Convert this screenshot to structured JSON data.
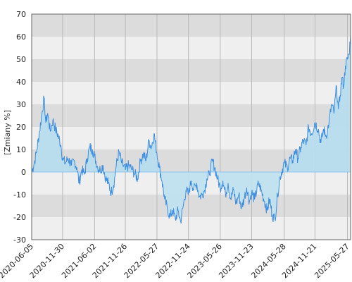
{
  "chart_data": {
    "type": "area",
    "title": "",
    "xlabel": "",
    "ylabel": "[Zmiany %]",
    "ylim": [
      -30,
      70
    ],
    "yticks": [
      -30,
      -20,
      -10,
      0,
      10,
      20,
      30,
      40,
      50,
      60,
      70
    ],
    "xlim": [
      "2020-06-05",
      "2025-06-14"
    ],
    "xtick_labels": [
      "2020-06-05",
      "2020-11-30",
      "2021-06-02",
      "2021-11-26",
      "2022-05-27",
      "2022-11-24",
      "2023-05-26",
      "2023-11-23",
      "2024-05-28",
      "2024-11-21",
      "2025-05-27"
    ],
    "grid": "alternating horizontal bands with vertical gridlines",
    "legend": "none",
    "colors": {
      "line": "#3d8ee0",
      "positive_fill": "#b7dced",
      "negative_fill": "#bfe0ef",
      "band_dark": "#dcdcdc",
      "band_light": "#efefef",
      "vgrid": "#b8b8b8"
    },
    "series": [
      {
        "points": [
          [
            "2020-06-05",
            0
          ],
          [
            "2020-06-20",
            4
          ],
          [
            "2020-07-05",
            10
          ],
          [
            "2020-07-20",
            18
          ],
          [
            "2020-08-05",
            27
          ],
          [
            "2020-08-15",
            33
          ],
          [
            "2020-08-25",
            22
          ],
          [
            "2020-09-05",
            26
          ],
          [
            "2020-09-20",
            18
          ],
          [
            "2020-10-05",
            23
          ],
          [
            "2020-10-20",
            19
          ],
          [
            "2020-11-05",
            16
          ],
          [
            "2020-11-20",
            12
          ],
          [
            "2020-11-30",
            6
          ],
          [
            "2020-12-15",
            4
          ],
          [
            "2021-01-01",
            6
          ],
          [
            "2021-01-20",
            3
          ],
          [
            "2021-02-05",
            5
          ],
          [
            "2021-02-20",
            2
          ],
          [
            "2021-03-05",
            -5
          ],
          [
            "2021-03-20",
            1
          ],
          [
            "2021-04-05",
            -1
          ],
          [
            "2021-04-20",
            6
          ],
          [
            "2021-05-05",
            11
          ],
          [
            "2021-05-20",
            10
          ],
          [
            "2021-06-02",
            7
          ],
          [
            "2021-06-20",
            2
          ],
          [
            "2021-07-05",
            1
          ],
          [
            "2021-07-20",
            3
          ],
          [
            "2021-08-05",
            -3
          ],
          [
            "2021-08-20",
            -5
          ],
          [
            "2021-09-05",
            -9
          ],
          [
            "2021-09-20",
            -6
          ],
          [
            "2021-10-05",
            3
          ],
          [
            "2021-10-20",
            9
          ],
          [
            "2021-11-05",
            4
          ],
          [
            "2021-11-26",
            1
          ],
          [
            "2021-12-15",
            3
          ],
          [
            "2022-01-05",
            1
          ],
          [
            "2022-01-20",
            -1
          ],
          [
            "2022-02-05",
            -3
          ],
          [
            "2022-02-20",
            5
          ],
          [
            "2022-03-10",
            8
          ],
          [
            "2022-03-25",
            5
          ],
          [
            "2022-04-10",
            14
          ],
          [
            "2022-04-25",
            11
          ],
          [
            "2022-05-10",
            17
          ],
          [
            "2022-05-27",
            8
          ],
          [
            "2022-06-10",
            2
          ],
          [
            "2022-06-25",
            -4
          ],
          [
            "2022-07-10",
            -12
          ],
          [
            "2022-07-25",
            -16
          ],
          [
            "2022-08-10",
            -20
          ],
          [
            "2022-08-25",
            -17
          ],
          [
            "2022-09-10",
            -21
          ],
          [
            "2022-09-25",
            -17
          ],
          [
            "2022-10-10",
            -22
          ],
          [
            "2022-10-25",
            -15
          ],
          [
            "2022-11-10",
            -8
          ],
          [
            "2022-11-24",
            -10
          ],
          [
            "2022-12-10",
            -4
          ],
          [
            "2022-12-25",
            -8
          ],
          [
            "2023-01-10",
            -5
          ],
          [
            "2023-01-25",
            -11
          ],
          [
            "2023-02-10",
            -10
          ],
          [
            "2023-02-25",
            -8
          ],
          [
            "2023-03-10",
            -3
          ],
          [
            "2023-03-25",
            -1
          ],
          [
            "2023-04-10",
            5
          ],
          [
            "2023-04-25",
            2
          ],
          [
            "2023-05-10",
            -3
          ],
          [
            "2023-05-26",
            -7
          ],
          [
            "2023-06-10",
            -4
          ],
          [
            "2023-06-25",
            -10
          ],
          [
            "2023-07-10",
            -5
          ],
          [
            "2023-07-25",
            -12
          ],
          [
            "2023-08-10",
            -8
          ],
          [
            "2023-08-25",
            -14
          ],
          [
            "2023-09-10",
            -10
          ],
          [
            "2023-09-25",
            -16
          ],
          [
            "2023-10-10",
            -12
          ],
          [
            "2023-10-25",
            -7
          ],
          [
            "2023-11-10",
            -13
          ],
          [
            "2023-11-23",
            -9
          ],
          [
            "2023-12-10",
            -12
          ],
          [
            "2024-01-01",
            -5
          ],
          [
            "2024-01-20",
            -9
          ],
          [
            "2024-02-05",
            -13
          ],
          [
            "2024-02-20",
            -17
          ],
          [
            "2024-03-05",
            -12
          ],
          [
            "2024-03-20",
            -19
          ],
          [
            "2024-04-05",
            -21
          ],
          [
            "2024-04-20",
            -10
          ],
          [
            "2024-05-05",
            -2
          ],
          [
            "2024-05-28",
            4
          ],
          [
            "2024-06-15",
            2
          ],
          [
            "2024-07-01",
            6
          ],
          [
            "2024-07-15",
            5
          ],
          [
            "2024-08-01",
            10
          ],
          [
            "2024-08-15",
            6
          ],
          [
            "2024-09-01",
            11
          ],
          [
            "2024-09-15",
            14
          ],
          [
            "2024-10-01",
            12
          ],
          [
            "2024-10-15",
            20
          ],
          [
            "2024-11-01",
            17
          ],
          [
            "2024-11-21",
            22
          ],
          [
            "2024-12-10",
            19
          ],
          [
            "2024-12-25",
            13
          ],
          [
            "2025-01-10",
            19
          ],
          [
            "2025-01-25",
            16
          ],
          [
            "2025-02-10",
            22
          ],
          [
            "2025-02-25",
            30
          ],
          [
            "2025-03-10",
            26
          ],
          [
            "2025-03-25",
            38
          ],
          [
            "2025-04-05",
            28
          ],
          [
            "2025-04-15",
            34
          ],
          [
            "2025-04-25",
            42
          ],
          [
            "2025-05-05",
            38
          ],
          [
            "2025-05-15",
            47
          ],
          [
            "2025-05-27",
            50
          ],
          [
            "2025-06-05",
            52
          ],
          [
            "2025-06-14",
            61
          ]
        ]
      }
    ]
  }
}
